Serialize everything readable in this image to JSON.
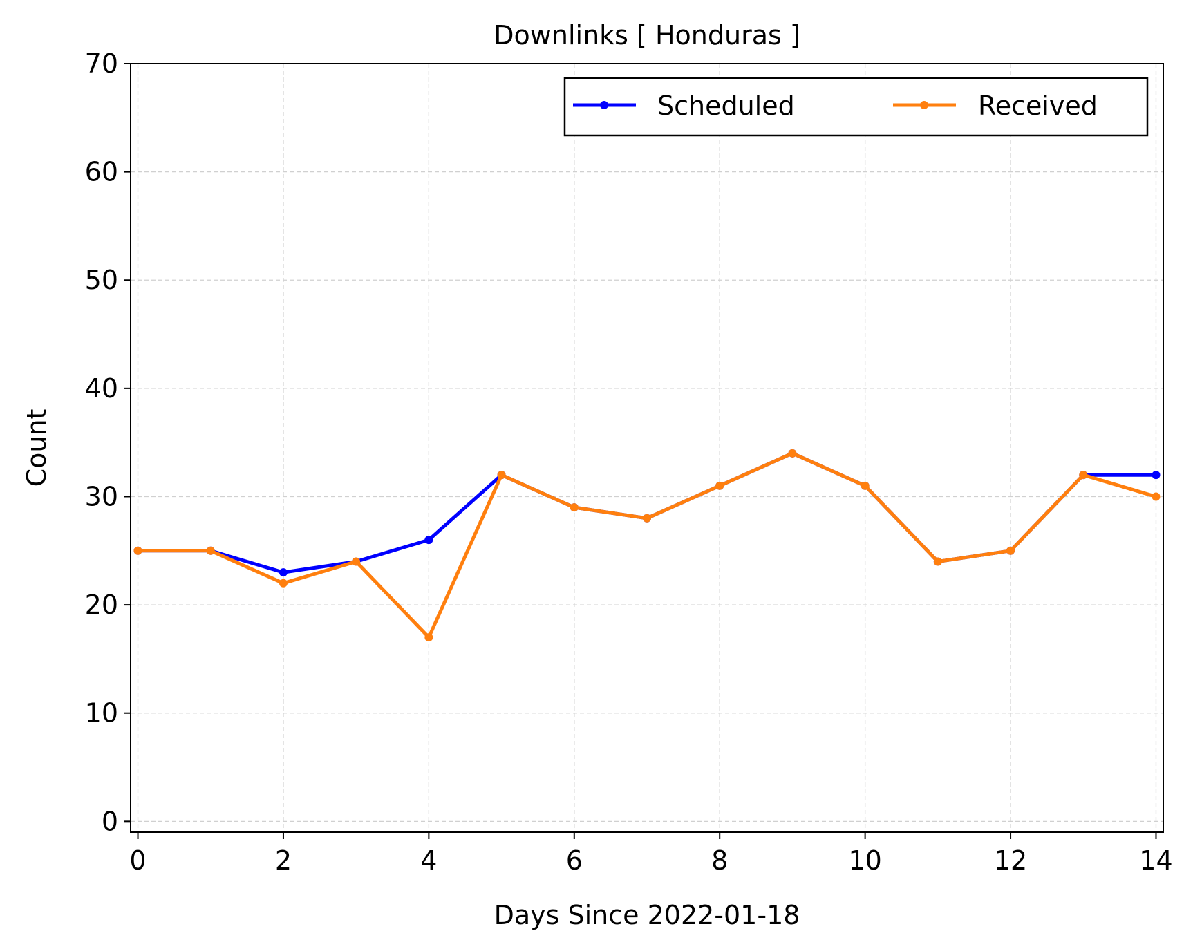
{
  "chart_data": {
    "type": "line",
    "title": "Downlinks [ Honduras ]",
    "xlabel": "Days Since 2022-01-18",
    "ylabel": "Count",
    "xlim": [
      -0.1,
      14.1
    ],
    "ylim": [
      -1,
      70
    ],
    "xticks": [
      0,
      2,
      4,
      6,
      8,
      10,
      12,
      14
    ],
    "yticks": [
      0,
      10,
      20,
      30,
      40,
      50,
      60,
      70
    ],
    "grid": true,
    "legend_position": "top-right",
    "x": [
      0,
      1,
      2,
      3,
      4,
      5,
      6,
      7,
      8,
      9,
      10,
      11,
      12,
      13,
      14
    ],
    "series": [
      {
        "name": "Scheduled",
        "color": "#0000ff",
        "marker": "circle",
        "values": [
          25,
          25,
          23,
          24,
          26,
          32,
          29,
          28,
          31,
          34,
          31,
          24,
          25,
          32,
          32
        ]
      },
      {
        "name": "Received",
        "color": "#ff7f0e",
        "marker": "circle",
        "values": [
          25,
          25,
          22,
          24,
          17,
          32,
          29,
          28,
          31,
          34,
          31,
          24,
          25,
          32,
          30
        ]
      }
    ]
  }
}
